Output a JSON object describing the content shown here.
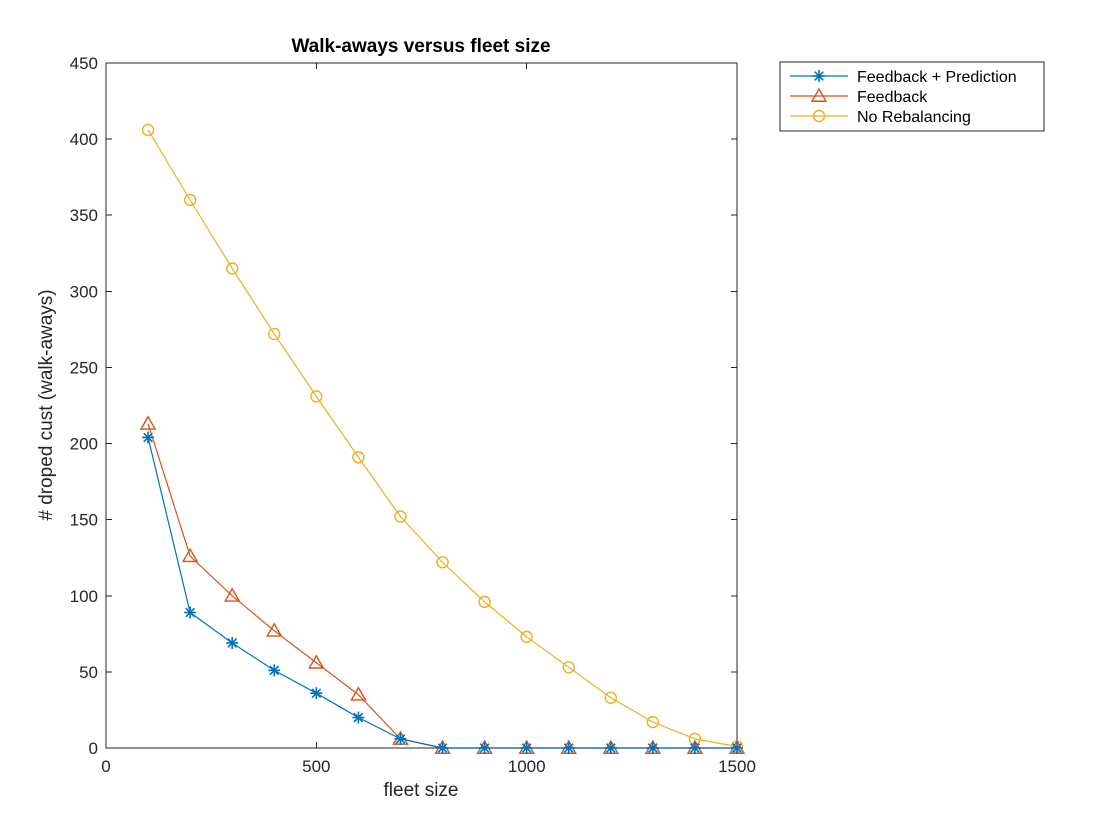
{
  "chart_data": {
    "type": "line",
    "title": "Walk-aways versus fleet size",
    "xlabel": "fleet size",
    "ylabel": "# droped cust (walk-aways)",
    "xlim": [
      0,
      1500
    ],
    "ylim": [
      0,
      450
    ],
    "xticks": [
      0,
      500,
      1000,
      1500
    ],
    "yticks": [
      0,
      50,
      100,
      150,
      200,
      250,
      300,
      350,
      400,
      450
    ],
    "grid": false,
    "legend_position": "outside-top-right",
    "x": [
      100,
      200,
      300,
      400,
      500,
      600,
      700,
      800,
      900,
      1000,
      1100,
      1200,
      1300,
      1400,
      1500
    ],
    "series": [
      {
        "name": "Feedback + Prediction",
        "color": "#0072BD",
        "marker": "asterisk",
        "values": [
          204,
          89,
          69,
          51,
          36,
          20,
          6,
          0,
          0,
          0,
          0,
          0,
          0,
          0,
          0
        ]
      },
      {
        "name": "Feedback",
        "color": "#D95319",
        "marker": "triangle",
        "values": [
          213,
          126,
          100,
          77,
          56,
          35,
          6,
          0,
          0,
          0,
          0,
          0,
          0,
          0,
          0
        ]
      },
      {
        "name": "No Rebalancing",
        "color": "#EDB120",
        "marker": "circle",
        "values": [
          406,
          360,
          315,
          272,
          231,
          191,
          152,
          122,
          96,
          73,
          53,
          33,
          17,
          6,
          1
        ]
      }
    ]
  }
}
